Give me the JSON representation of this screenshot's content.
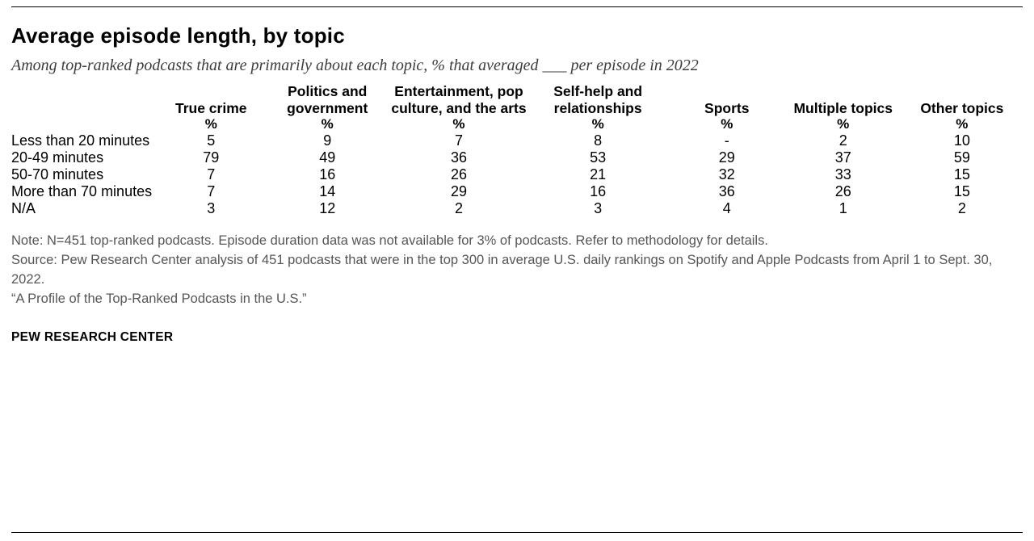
{
  "header": {
    "title": "Average episode length, by topic",
    "subtitle": "Among top-ranked podcasts that are primarily about each topic, % that averaged ___ per episode in 2022"
  },
  "chart_data": {
    "type": "table",
    "title": "Average episode length, by topic",
    "unit": "%",
    "columns": [
      "True crime",
      "Politics and government",
      "Entertainment, pop culture, and the arts",
      "Self-help and relationships",
      "Sports",
      "Multiple topics",
      "Other topics"
    ],
    "rows": [
      {
        "label": "Less than 20 minutes",
        "values": [
          "5",
          "9",
          "7",
          "8",
          "-",
          "2",
          "10"
        ]
      },
      {
        "label": "20-49 minutes",
        "values": [
          "79",
          "49",
          "36",
          "53",
          "29",
          "37",
          "59"
        ]
      },
      {
        "label": "50-70 minutes",
        "values": [
          "7",
          "16",
          "26",
          "21",
          "32",
          "33",
          "15"
        ]
      },
      {
        "label": "More than 70 minutes",
        "values": [
          "7",
          "14",
          "29",
          "16",
          "36",
          "26",
          "15"
        ]
      },
      {
        "label": "N/A",
        "values": [
          "3",
          "12",
          "2",
          "3",
          "4",
          "1",
          "2"
        ]
      }
    ]
  },
  "footer": {
    "note": "Note: N=451 top-ranked podcasts. Episode duration data was not available for 3% of podcasts. Refer to methodology for details.",
    "source": "Source: Pew Research Center analysis of 451 podcasts that were in the top 300 in average U.S. daily rankings on Spotify and Apple Podcasts from April 1 to Sept. 30, 2022.",
    "quote": "“A Profile of the Top-Ranked Podcasts in the U.S.”",
    "brand": "PEW RESEARCH CENTER"
  }
}
